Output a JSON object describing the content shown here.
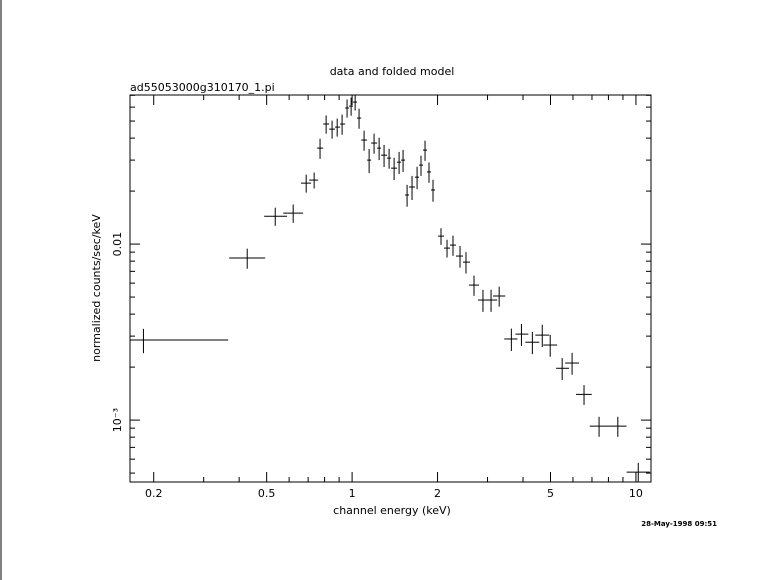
{
  "chart_data": {
    "type": "scatter",
    "title": "data and folded model",
    "subtitle": "ad55053000g310170_1.pi",
    "x_label": "channel energy (keV)",
    "y_label": "normalized counts/sec/keV",
    "annotation": "28-May-1998 09:51",
    "x_log": true,
    "y_log": true,
    "color": "#000000",
    "xlim": [
      0.165,
      11.3
    ],
    "ylim": [
      0.000445,
      0.0703
    ],
    "xticks": [
      0.2,
      0.5,
      1,
      2,
      5,
      10
    ],
    "yticks": [
      {
        "value": 0.001,
        "label": "10⁻³"
      },
      0.01
    ],
    "xminorticks": [
      0.3,
      0.4,
      0.6,
      0.7,
      0.8,
      0.9,
      3,
      4,
      6,
      7,
      8,
      9
    ],
    "yminorticks": [
      0.0005,
      0.0006,
      0.0007,
      0.0008,
      0.0009,
      0.002,
      0.003,
      0.004,
      0.005,
      0.006,
      0.007,
      0.008,
      0.009,
      0.02,
      0.03,
      0.04,
      0.05,
      0.06,
      0.07
    ],
    "x": [
      0.184,
      0.427,
      0.536,
      0.62,
      0.689,
      0.735,
      0.771,
      0.81,
      0.85,
      0.886,
      0.922,
      0.96,
      0.992,
      1.025,
      1.058,
      1.102,
      1.148,
      1.195,
      1.245,
      1.296,
      1.35,
      1.406,
      1.464,
      1.512,
      1.562,
      1.626,
      1.694,
      1.749,
      1.807,
      1.866,
      1.928,
      2.057,
      2.16,
      2.267,
      2.4,
      2.519,
      2.688,
      2.891,
      3.087,
      3.297,
      3.64,
      3.95,
      4.316,
      4.677,
      4.988,
      5.497,
      5.957,
      6.563,
      7.415,
      8.633,
      10.19
    ],
    "x_low": [
      0.165,
      0.369,
      0.49,
      0.572,
      0.661,
      0.706,
      0.753,
      0.791,
      0.83,
      0.871,
      0.907,
      0.945,
      0.976,
      1.008,
      1.041,
      1.076,
      1.129,
      1.167,
      1.225,
      1.265,
      1.328,
      1.372,
      1.44,
      1.488,
      1.537,
      1.587,
      1.666,
      1.721,
      1.778,
      1.836,
      1.897,
      2.008,
      2.108,
      2.213,
      2.323,
      2.459,
      2.581,
      2.776,
      2.962,
      3.138,
      3.436,
      3.762,
      4.079,
      4.422,
      4.715,
      5.233,
      5.632,
      6.15,
      6.876,
      8.156,
      9.267
    ],
    "x_high": [
      0.366,
      0.494,
      0.59,
      0.672,
      0.717,
      0.759,
      0.791,
      0.83,
      0.871,
      0.907,
      0.945,
      0.976,
      1.008,
      1.041,
      1.076,
      1.129,
      1.167,
      1.225,
      1.265,
      1.328,
      1.372,
      1.44,
      1.488,
      1.537,
      1.587,
      1.666,
      1.721,
      1.778,
      1.836,
      1.897,
      1.959,
      2.108,
      2.213,
      2.323,
      2.459,
      2.602,
      2.799,
      3.038,
      3.244,
      3.464,
      3.824,
      4.179,
      4.565,
      4.948,
      5.276,
      5.815,
      6.302,
      6.988,
      8.156,
      9.267,
      11.2
    ],
    "y": [
      0.00285,
      0.00833,
      0.0144,
      0.015,
      0.0222,
      0.0231,
      0.0351,
      0.0481,
      0.045,
      0.0462,
      0.0481,
      0.0593,
      0.0608,
      0.0641,
      0.052,
      0.039,
      0.03,
      0.0375,
      0.0351,
      0.032,
      0.0308,
      0.027,
      0.0292,
      0.03,
      0.019,
      0.0211,
      0.024,
      0.0281,
      0.0342,
      0.0257,
      0.0203,
      0.0111,
      0.00949,
      0.00987,
      0.00855,
      0.0079,
      0.00585,
      0.00481,
      0.00481,
      0.00507,
      0.00289,
      0.00308,
      0.00277,
      0.00304,
      0.00267,
      0.00197,
      0.00211,
      0.0014,
      0.000924,
      0.000924,
      0.000506
    ],
    "y_err": [
      0.00045,
      0.00109,
      0.0017,
      0.0018,
      0.0026,
      0.0024,
      0.0046,
      0.0057,
      0.0053,
      0.0054,
      0.0063,
      0.007,
      0.0072,
      0.0067,
      0.0068,
      0.0051,
      0.0047,
      0.0049,
      0.0051,
      0.0046,
      0.004,
      0.0039,
      0.0042,
      0.0043,
      0.0027,
      0.0033,
      0.0035,
      0.0037,
      0.0045,
      0.0034,
      0.0029,
      0.0012,
      0.0011,
      0.0013,
      0.0012,
      0.0011,
      0.00077,
      0.00069,
      0.00069,
      0.00066,
      0.00042,
      0.00044,
      0.0004,
      0.00044,
      0.00038,
      0.00028,
      0.0003,
      0.00018,
      0.00012,
      0.00012,
      6.6e-05
    ]
  }
}
